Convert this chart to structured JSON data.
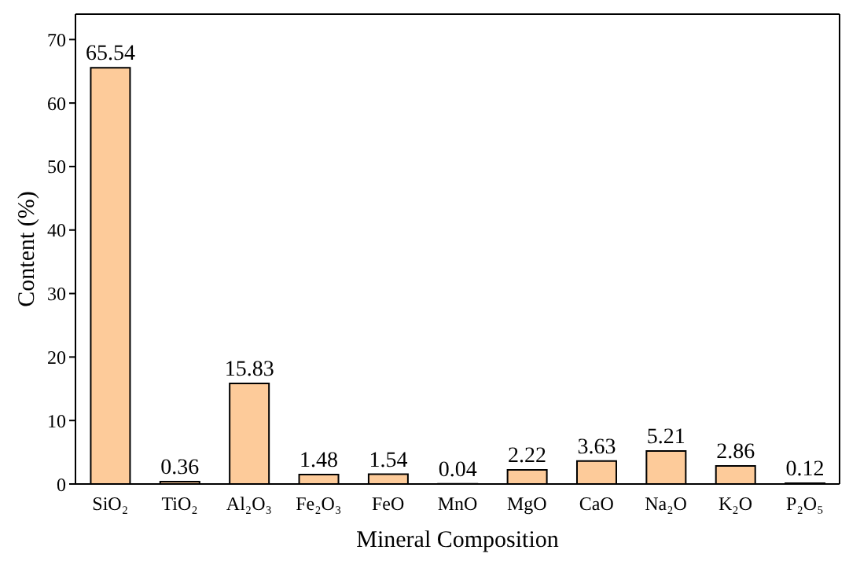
{
  "chart_data": {
    "type": "bar",
    "xlabel": "Mineral Composition",
    "ylabel": "Content (%)",
    "categories": [
      "SiO₂",
      "TiO₂",
      "Al₂O₃",
      "Fe₂O₃",
      "FeO",
      "MnO",
      "MgO",
      "CaO",
      "Na₂O",
      "K₂O",
      "P₂O₅"
    ],
    "values": [
      65.54,
      0.36,
      15.83,
      1.48,
      1.54,
      0.04,
      2.22,
      3.63,
      5.21,
      2.86,
      0.12
    ],
    "color": "#fdcb9a",
    "ylim": [
      0,
      74
    ],
    "yticks": [
      0,
      10,
      20,
      30,
      40,
      50,
      60,
      70
    ],
    "grid": false,
    "data_labels": true
  }
}
